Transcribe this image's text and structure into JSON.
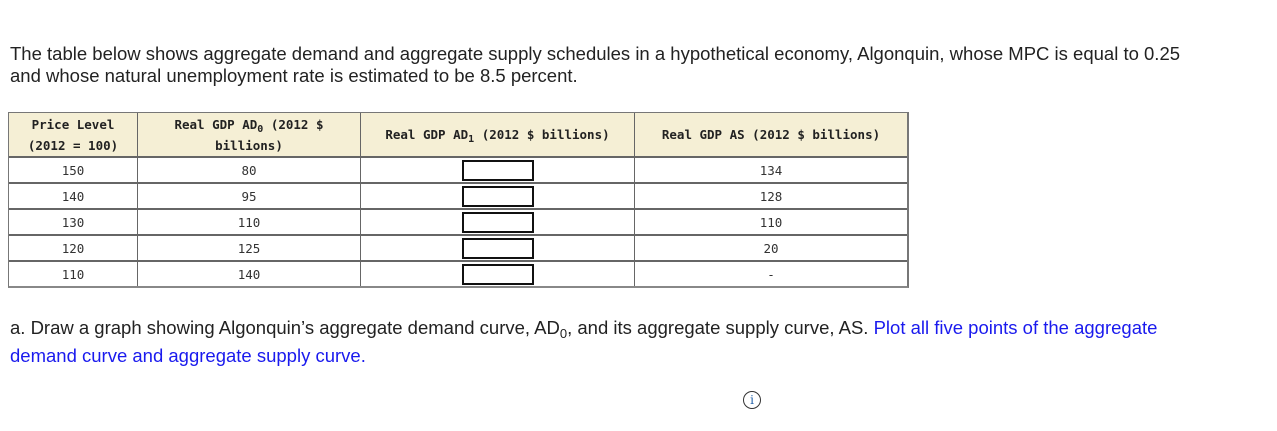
{
  "intro": {
    "text": "The table below shows aggregate demand and aggregate supply schedules in a hypothetical economy, Algonquin, whose MPC is equal to 0.25 and whose natural unemployment rate is estimated to be 8.5 percent."
  },
  "table": {
    "headers": {
      "price_level": {
        "line1": "Price Level",
        "line2": "(2012 = 100)"
      },
      "ad0": {
        "pre": "Real GDP AD",
        "sub": "0",
        "post": " (2012 $ billions)"
      },
      "ad1": {
        "pre": "Real GDP AD",
        "sub": "1",
        "post": " (2012 $ billions)"
      },
      "as": {
        "text": "Real GDP AS (2012 $ billions)"
      }
    },
    "rows": [
      {
        "price": "150",
        "ad0": "80",
        "ad1": "",
        "as": "134"
      },
      {
        "price": "140",
        "ad0": "95",
        "ad1": "",
        "as": "128"
      },
      {
        "price": "130",
        "ad0": "110",
        "ad1": "",
        "as": "110"
      },
      {
        "price": "120",
        "ad0": "125",
        "ad1": "",
        "as": "20"
      },
      {
        "price": "110",
        "ad0": "140",
        "ad1": "",
        "as": "-"
      }
    ]
  },
  "question": {
    "part_a_pre": "a. Draw a graph showing Algonquin’s aggregate demand curve, AD",
    "part_a_sub": "0",
    "part_a_post": ", and its aggregate supply curve, AS. ",
    "instruction": "Plot all five points of the aggregate demand curve and aggregate supply curve."
  },
  "info_icon": {
    "glyph": "i",
    "name": "info-icon"
  },
  "colors": {
    "header_bg": "#f5efd5",
    "link_blue": "#1a1aee",
    "text": "#222222"
  }
}
